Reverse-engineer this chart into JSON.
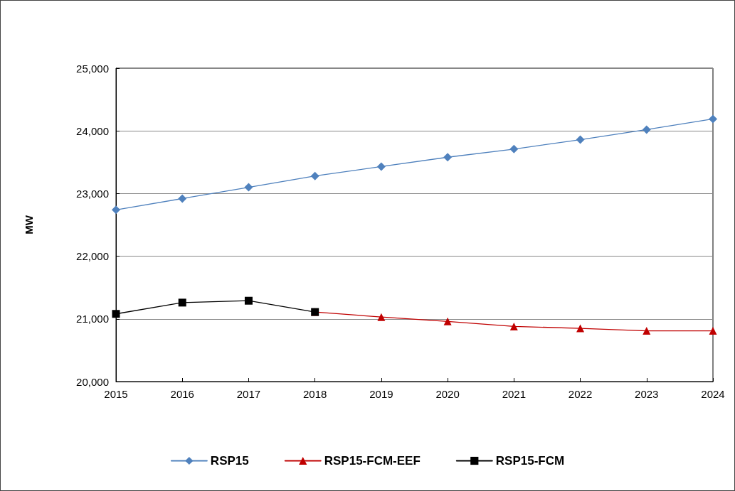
{
  "chart_data": {
    "type": "line",
    "ylabel": "MW",
    "categories": [
      "2015",
      "2016",
      "2017",
      "2018",
      "2019",
      "2020",
      "2021",
      "2022",
      "2023",
      "2024"
    ],
    "series": [
      {
        "name": "RSP15",
        "color": "#4f81bd",
        "marker": "diamond",
        "values": [
          22740,
          22920,
          23100,
          23280,
          23430,
          23580,
          23710,
          23860,
          24020,
          24190
        ]
      },
      {
        "name": "RSP15-FCM-EEF",
        "color": "#c00000",
        "marker": "triangle",
        "values": [
          null,
          null,
          null,
          21110,
          21030,
          20960,
          20880,
          20850,
          20810,
          20810
        ]
      },
      {
        "name": "RSP15-FCM",
        "color": "#000000",
        "marker": "square",
        "values": [
          21080,
          21260,
          21290,
          21110,
          null,
          null,
          null,
          null,
          null,
          null
        ]
      }
    ],
    "ylim": [
      20000,
      25000
    ],
    "yticks": [
      {
        "value": 20000,
        "label": "20,000"
      },
      {
        "value": 21000,
        "label": "21,000"
      },
      {
        "value": 22000,
        "label": "22,000"
      },
      {
        "value": 23000,
        "label": "23,000"
      },
      {
        "value": 24000,
        "label": "24,000"
      },
      {
        "value": 25000,
        "label": "25,000"
      }
    ],
    "grid": "y",
    "legend": "bottom",
    "line_style": "solid"
  }
}
